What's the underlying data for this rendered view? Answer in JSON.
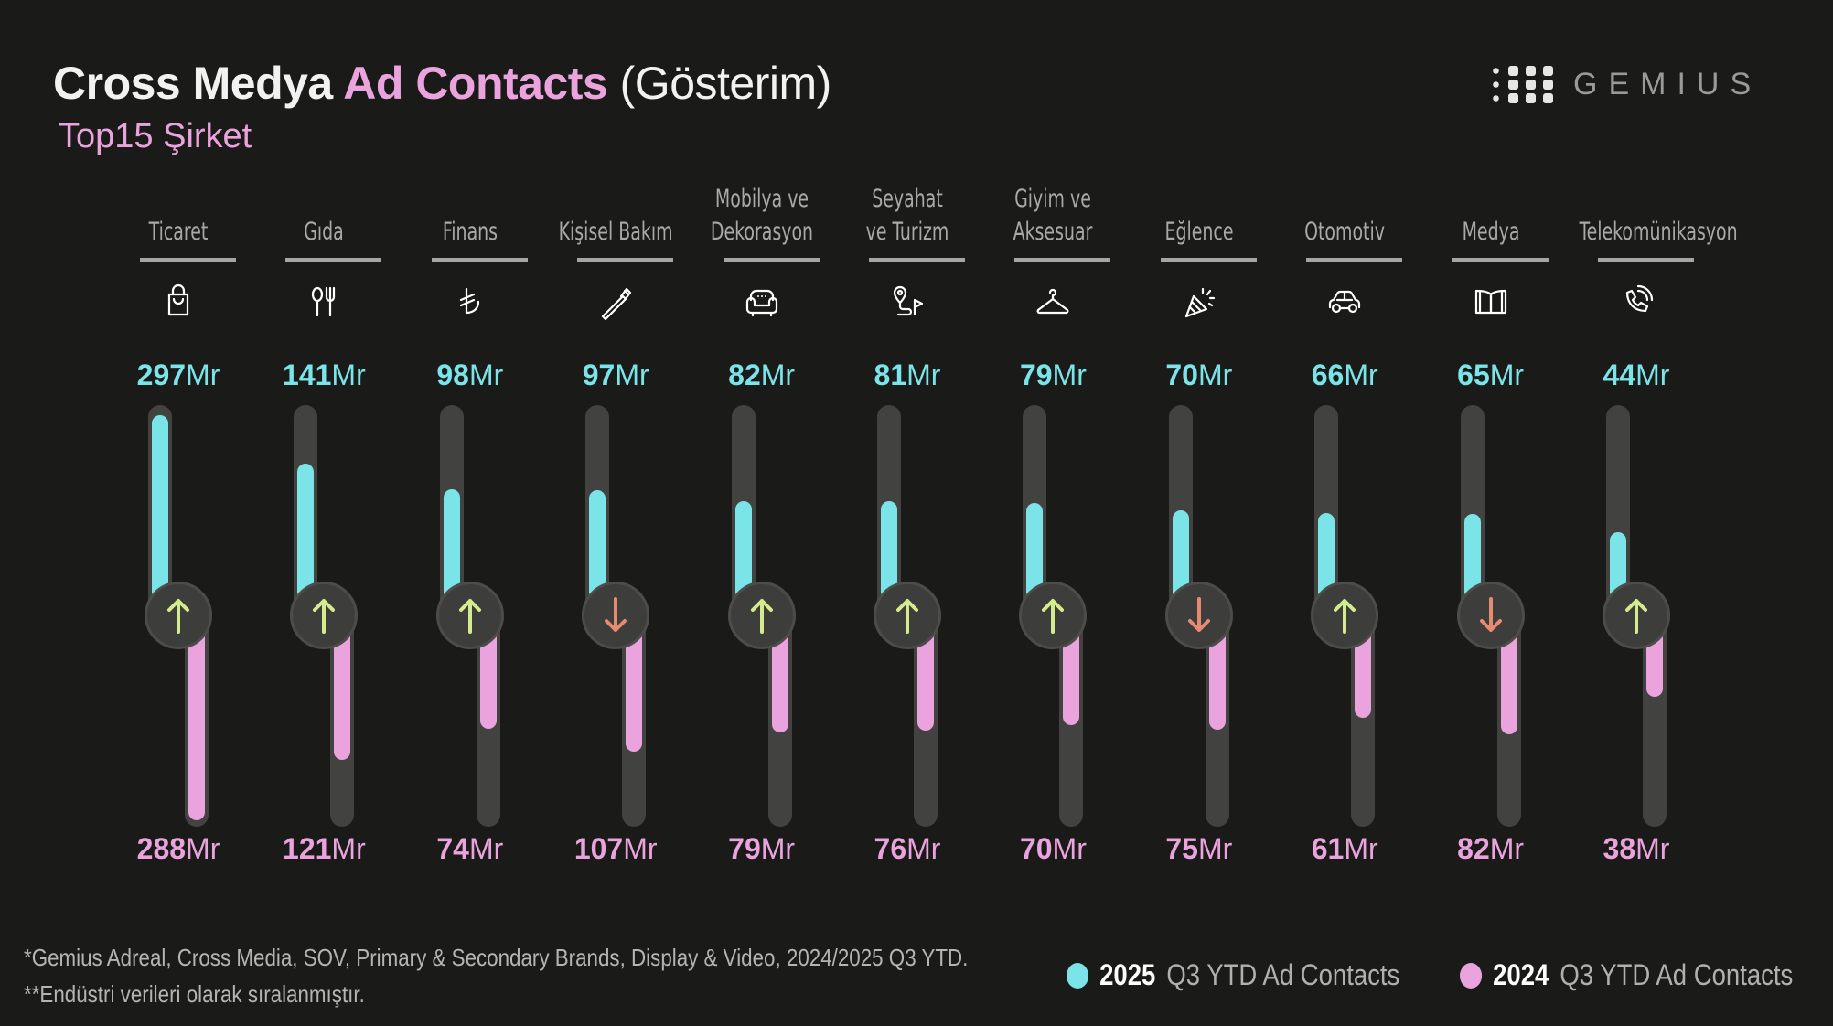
{
  "header": {
    "title_part1": "Cross Medya",
    "title_part2": "Ad Contacts",
    "title_part3": "(Gösterim)",
    "subtitle": "Top15 Şirket",
    "logo_text": "GEMIUS"
  },
  "colors": {
    "series_2025": "#7ae4e8",
    "series_2024": "#eaa3dc",
    "up_arrow": "#d4ec8e",
    "down_arrow": "#e88a72",
    "track": "#424241",
    "background": "#1a1a19"
  },
  "chart_data": {
    "type": "bar",
    "title": "Cross Medya Ad Contacts (Gösterim) — Top15 Şirket",
    "unit": "Mr",
    "categories": [
      "Ticaret",
      "Gıda",
      "Finans",
      "Kişisel Bakım",
      "Mobilya ve Dekorasyon",
      "Seyahat ve Turizm",
      "Giyim ve Aksesuar",
      "Eğlence",
      "Otomotiv",
      "Medya",
      "Telekomünikasyon"
    ],
    "category_lines": [
      [
        "Ticaret"
      ],
      [
        "Gıda"
      ],
      [
        "Finans"
      ],
      [
        "Kişisel Bakım"
      ],
      [
        "Mobilya ve",
        "Dekorasyon"
      ],
      [
        "Seyahat",
        "ve Turizm"
      ],
      [
        "Giyim ve",
        "Aksesuar"
      ],
      [
        "Eğlence"
      ],
      [
        "Otomotiv"
      ],
      [
        "Medya"
      ],
      [
        "Telekomünikasyon"
      ]
    ],
    "icons": [
      "shopping-bag-icon",
      "fork-spoon-icon",
      "lira-icon",
      "toothbrush-icon",
      "armchair-icon",
      "route-flag-icon",
      "hanger-icon",
      "party-popper-icon",
      "car-icon",
      "book-icon",
      "phone-icon"
    ],
    "series": [
      {
        "name": "2025 Q3 YTD Ad Contacts",
        "values": [
          297,
          141,
          98,
          97,
          82,
          81,
          79,
          70,
          66,
          65,
          44
        ]
      },
      {
        "name": "2024 Q3 YTD Ad Contacts",
        "values": [
          288,
          121,
          74,
          107,
          79,
          76,
          70,
          75,
          61,
          82,
          38
        ]
      }
    ],
    "trend": [
      "up",
      "up",
      "up",
      "down",
      "up",
      "up",
      "up",
      "down",
      "up",
      "down",
      "up"
    ],
    "legend_position": "bottom-right"
  },
  "legend": [
    {
      "year": "2025",
      "label": "Q3 YTD Ad Contacts"
    },
    {
      "year": "2024",
      "label": "Q3 YTD Ad Contacts"
    }
  ],
  "footnotes": [
    "*Gemius Adreal, Cross Media, SOV, Primary & Secondary Brands, Display & Video, 2024/2025 Q3 YTD.",
    "**Endüstri verileri olarak sıralanmıştır."
  ]
}
